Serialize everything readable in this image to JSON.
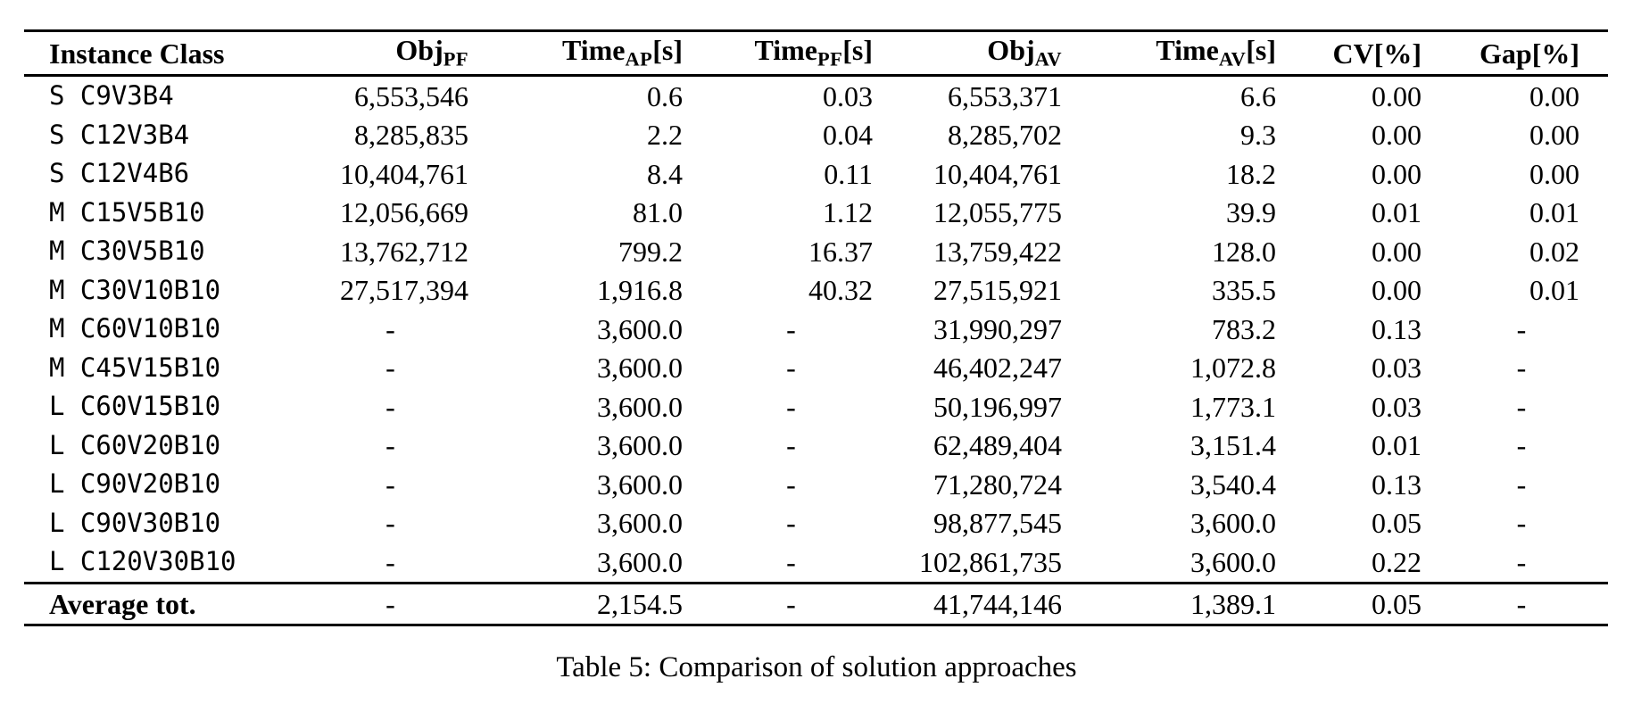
{
  "table": {
    "columns": [
      {
        "key": "instance",
        "base": "Instance Class",
        "sub": "",
        "suffix": ""
      },
      {
        "key": "obj_pf",
        "base": "Obj",
        "sub": "PF",
        "suffix": ""
      },
      {
        "key": "time_ap",
        "base": "Time",
        "sub": "AP",
        "suffix": "[s]"
      },
      {
        "key": "time_pf",
        "base": "Time",
        "sub": "PF",
        "suffix": "[s]"
      },
      {
        "key": "obj_av",
        "base": "Obj",
        "sub": "AV",
        "suffix": ""
      },
      {
        "key": "time_av",
        "base": "Time",
        "sub": "AV",
        "suffix": "[s]"
      },
      {
        "key": "cv",
        "base": "CV",
        "sub": "",
        "suffix": "[%]"
      },
      {
        "key": "gap",
        "base": "Gap",
        "sub": "",
        "suffix": "[%]"
      }
    ],
    "rows": [
      {
        "instance": "S C9V3B4",
        "obj_pf": "6,553,546",
        "time_ap": "0.6",
        "time_pf": "0.03",
        "obj_av": "6,553,371",
        "time_av": "6.6",
        "cv": "0.00",
        "gap": "0.00"
      },
      {
        "instance": "S C12V3B4",
        "obj_pf": "8,285,835",
        "time_ap": "2.2",
        "time_pf": "0.04",
        "obj_av": "8,285,702",
        "time_av": "9.3",
        "cv": "0.00",
        "gap": "0.00"
      },
      {
        "instance": "S C12V4B6",
        "obj_pf": "10,404,761",
        "time_ap": "8.4",
        "time_pf": "0.11",
        "obj_av": "10,404,761",
        "time_av": "18.2",
        "cv": "0.00",
        "gap": "0.00"
      },
      {
        "instance": "M C15V5B10",
        "obj_pf": "12,056,669",
        "time_ap": "81.0",
        "time_pf": "1.12",
        "obj_av": "12,055,775",
        "time_av": "39.9",
        "cv": "0.01",
        "gap": "0.01"
      },
      {
        "instance": "M C30V5B10",
        "obj_pf": "13,762,712",
        "time_ap": "799.2",
        "time_pf": "16.37",
        "obj_av": "13,759,422",
        "time_av": "128.0",
        "cv": "0.00",
        "gap": "0.02"
      },
      {
        "instance": "M C30V10B10",
        "obj_pf": "27,517,394",
        "time_ap": "1,916.8",
        "time_pf": "40.32",
        "obj_av": "27,515,921",
        "time_av": "335.5",
        "cv": "0.00",
        "gap": "0.01"
      },
      {
        "instance": "M C60V10B10",
        "obj_pf": "-",
        "time_ap": "3,600.0",
        "time_pf": "-",
        "obj_av": "31,990,297",
        "time_av": "783.2",
        "cv": "0.13",
        "gap": "-"
      },
      {
        "instance": "M C45V15B10",
        "obj_pf": "-",
        "time_ap": "3,600.0",
        "time_pf": "-",
        "obj_av": "46,402,247",
        "time_av": "1,072.8",
        "cv": "0.03",
        "gap": "-"
      },
      {
        "instance": "L C60V15B10",
        "obj_pf": "-",
        "time_ap": "3,600.0",
        "time_pf": "-",
        "obj_av": "50,196,997",
        "time_av": "1,773.1",
        "cv": "0.03",
        "gap": "-"
      },
      {
        "instance": "L C60V20B10",
        "obj_pf": "-",
        "time_ap": "3,600.0",
        "time_pf": "-",
        "obj_av": "62,489,404",
        "time_av": "3,151.4",
        "cv": "0.01",
        "gap": "-"
      },
      {
        "instance": "L C90V20B10",
        "obj_pf": "-",
        "time_ap": "3,600.0",
        "time_pf": "-",
        "obj_av": "71,280,724",
        "time_av": "3,540.4",
        "cv": "0.13",
        "gap": "-"
      },
      {
        "instance": "L C90V30B10",
        "obj_pf": "-",
        "time_ap": "3,600.0",
        "time_pf": "-",
        "obj_av": "98,877,545",
        "time_av": "3,600.0",
        "cv": "0.05",
        "gap": "-"
      },
      {
        "instance": "L C120V30B10",
        "obj_pf": "-",
        "time_ap": "3,600.0",
        "time_pf": "-",
        "obj_av": "102,861,735",
        "time_av": "3,600.0",
        "cv": "0.22",
        "gap": "-"
      }
    ],
    "footer": {
      "instance": "Average tot.",
      "obj_pf": "-",
      "time_ap": "2,154.5",
      "time_pf": "-",
      "obj_av": "41,744,146",
      "time_av": "1,389.1",
      "cv": "0.05",
      "gap": "-"
    }
  },
  "caption": "Table 5: Comparison of solution approaches",
  "colors": {
    "background": "#ffffff",
    "text": "#000000",
    "rule": "#000000"
  }
}
